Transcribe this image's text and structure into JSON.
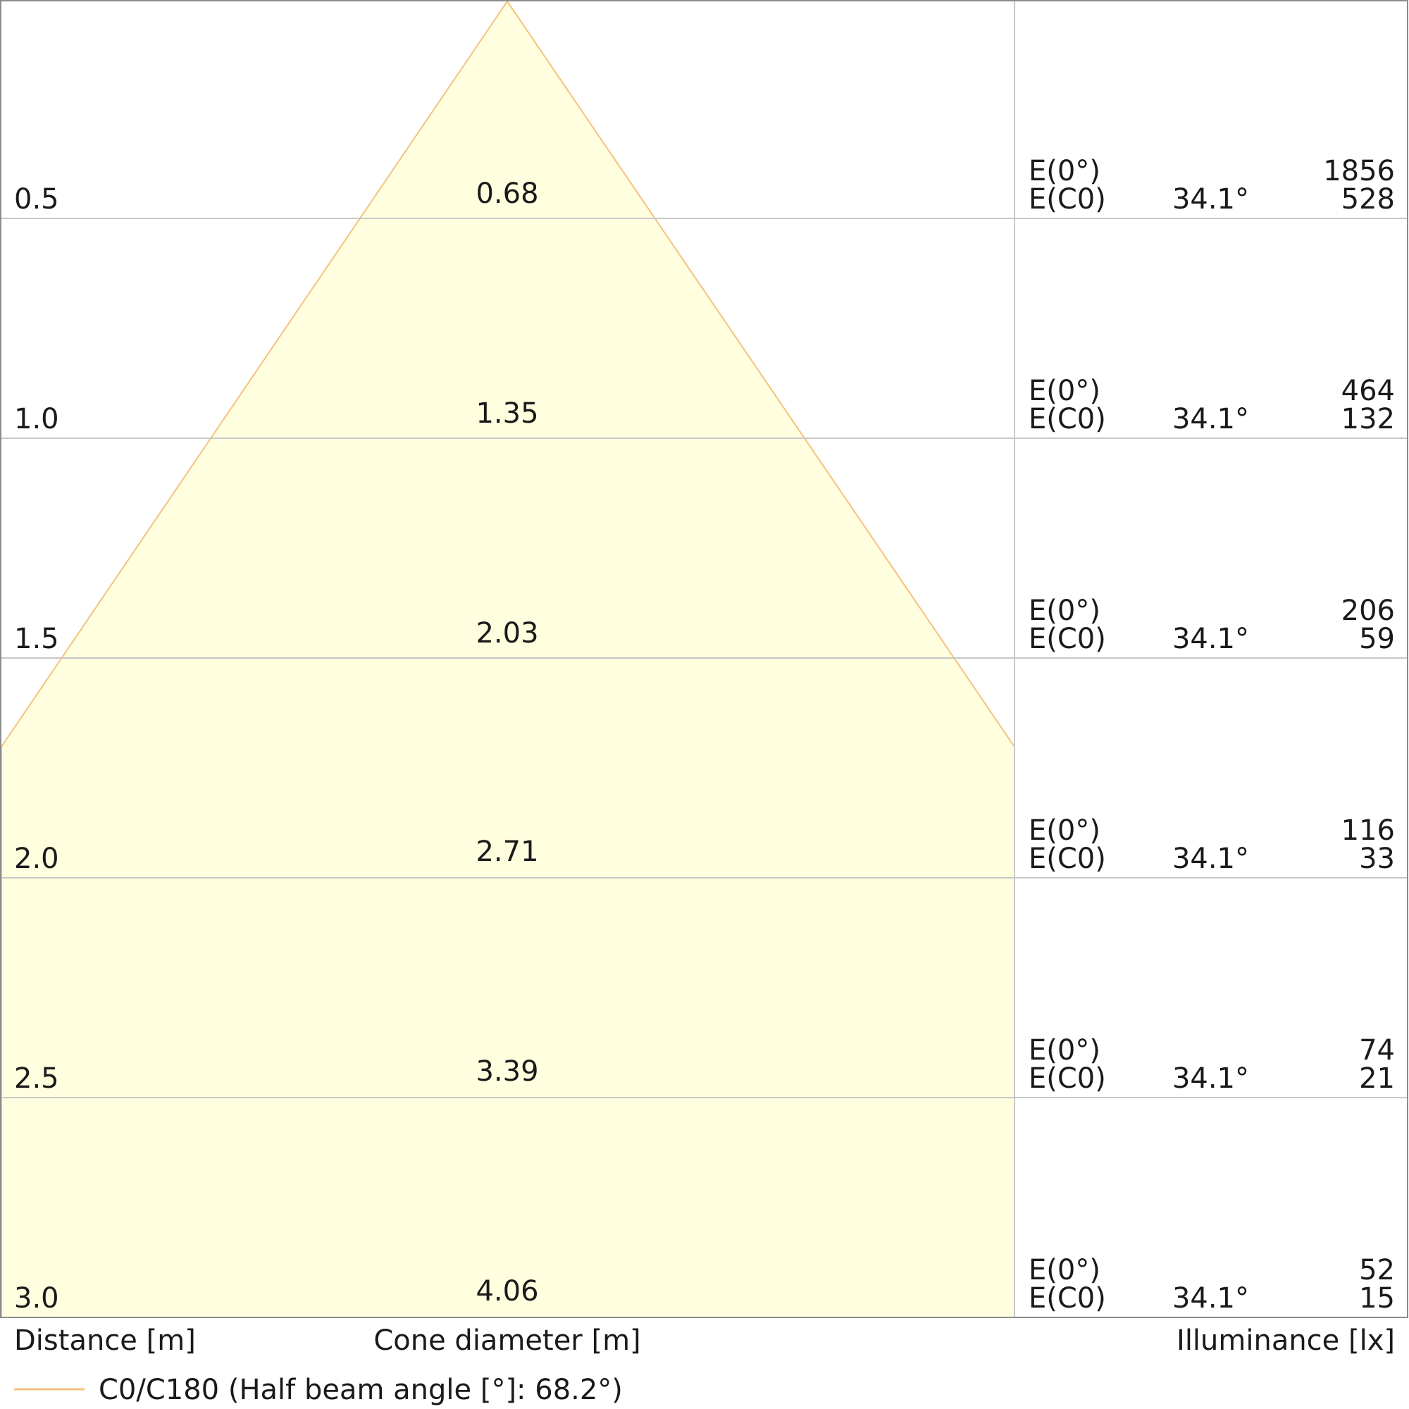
{
  "chart_data": {
    "type": "cone-diagram",
    "rows": [
      {
        "distance": "0.5",
        "diameter": "0.68",
        "e0_label": "E(0°)",
        "ec0_label": "E(C0)",
        "angle": "34.1°",
        "e0_value": "1856",
        "ec0_value": "528"
      },
      {
        "distance": "1.0",
        "diameter": "1.35",
        "e0_label": "E(0°)",
        "ec0_label": "E(C0)",
        "angle": "34.1°",
        "e0_value": "464",
        "ec0_value": "132"
      },
      {
        "distance": "1.5",
        "diameter": "2.03",
        "e0_label": "E(0°)",
        "ec0_label": "E(C0)",
        "angle": "34.1°",
        "e0_value": "206",
        "ec0_value": "59"
      },
      {
        "distance": "2.0",
        "diameter": "2.71",
        "e0_label": "E(0°)",
        "ec0_label": "E(C0)",
        "angle": "34.1°",
        "e0_value": "116",
        "ec0_value": "33"
      },
      {
        "distance": "2.5",
        "diameter": "3.39",
        "e0_label": "E(0°)",
        "ec0_label": "E(C0)",
        "angle": "34.1°",
        "e0_value": "74",
        "ec0_value": "21"
      },
      {
        "distance": "3.0",
        "diameter": "4.06",
        "e0_label": "E(0°)",
        "ec0_label": "E(C0)",
        "angle": "34.1°",
        "e0_value": "52",
        "ec0_value": "15"
      }
    ],
    "distance_label": "Distance [m]",
    "diameter_label": "Cone diameter [m]",
    "illuminance_label": "Illuminance [lx]",
    "legend": {
      "label": "C0/C180 (Half beam angle [°]: 68.2°)",
      "color": "#f3c27f"
    },
    "cone_fill": "#ffffe0",
    "cone_stroke": "#f3c27f"
  }
}
